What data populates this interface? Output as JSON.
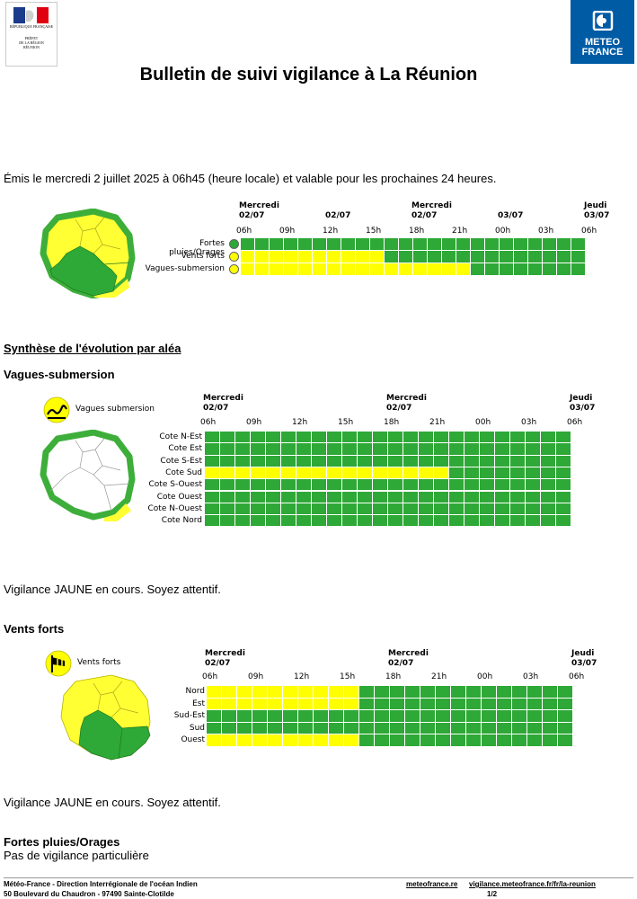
{
  "header": {
    "prefet_lines": [
      "RÉPUBLIQUE FRANÇAISE",
      "PRÉFET",
      "DE LA RÉGION",
      "RÉUNION"
    ],
    "mf_logo_lines": [
      "METEO",
      "FRANCE"
    ],
    "title": "Bulletin de suivi vigilance à La Réunion"
  },
  "emis": "Émis le mercredi 2 juillet 2025 à 06h45 (heure locale) et valable pour les prochaines 24 heures.",
  "colors": {
    "green": "#2ea836",
    "yellow": "#ffff00",
    "border_green": "#3dae3a"
  },
  "summary": {
    "date_headers": [
      {
        "day": "Mercredi",
        "date": "02/07",
        "col": 0
      },
      {
        "day": "",
        "date": "02/07",
        "col": 2
      },
      {
        "day": "Mercredi",
        "date": "02/07",
        "col": 4
      },
      {
        "day": "",
        "date": "03/07",
        "col": 6
      },
      {
        "day": "Jeudi",
        "date": "03/07",
        "col": 8
      }
    ],
    "ticks": [
      "06h",
      "09h",
      "12h",
      "15h",
      "18h",
      "21h",
      "00h",
      "03h",
      "06h"
    ],
    "rows": [
      {
        "label": "Fortes pluies/Orages",
        "icon": "rain-storm-icon",
        "yellow_hours": 0
      },
      {
        "label": "Vents forts",
        "icon": "wind-icon",
        "yellow_hours": 10
      },
      {
        "label": "Vagues-submersion",
        "icon": "wave-icon",
        "yellow_hours": 16
      }
    ]
  },
  "synthese_title": "Synthèse de l'évolution par aléa",
  "vagues": {
    "title": "Vagues-submersion",
    "icon_label": "Vagues submersion",
    "date_headers": [
      {
        "day": "Mercredi",
        "date": "02/07",
        "col": 0
      },
      {
        "day": "Mercredi",
        "date": "02/07",
        "col": 4
      },
      {
        "day": "Jeudi",
        "date": "03/07",
        "col": 8
      }
    ],
    "ticks": [
      "06h",
      "09h",
      "12h",
      "15h",
      "18h",
      "21h",
      "00h",
      "03h",
      "06h"
    ],
    "rows": [
      {
        "label": "Cote N-Est",
        "yellow_hours": 0
      },
      {
        "label": "Cote Est",
        "yellow_hours": 0
      },
      {
        "label": "Cote S-Est",
        "yellow_hours": 0
      },
      {
        "label": "Cote Sud",
        "yellow_hours": 16
      },
      {
        "label": "Cote S-Ouest",
        "yellow_hours": 0
      },
      {
        "label": "Cote Ouest",
        "yellow_hours": 0
      },
      {
        "label": "Cote N-Ouest",
        "yellow_hours": 0
      },
      {
        "label": "Cote Nord",
        "yellow_hours": 0
      }
    ],
    "status": "Vigilance JAUNE en cours. Soyez attentif."
  },
  "vents": {
    "title": "Vents forts",
    "icon_label": "Vents forts",
    "date_headers": [
      {
        "day": "Mercredi",
        "date": "02/07",
        "col": 0
      },
      {
        "day": "Mercredi",
        "date": "02/07",
        "col": 4
      },
      {
        "day": "Jeudi",
        "date": "03/07",
        "col": 8
      }
    ],
    "ticks": [
      "06h",
      "09h",
      "12h",
      "15h",
      "18h",
      "21h",
      "00h",
      "03h",
      "06h"
    ],
    "rows": [
      {
        "label": "Nord",
        "yellow_hours": 10
      },
      {
        "label": "Est",
        "yellow_hours": 10
      },
      {
        "label": "Sud-Est",
        "yellow_hours": 0
      },
      {
        "label": "Sud",
        "yellow_hours": 0
      },
      {
        "label": "Ouest",
        "yellow_hours": 10
      }
    ],
    "status": "Vigilance JAUNE en cours. Soyez attentif."
  },
  "pluies": {
    "title": "Fortes pluies/Orages",
    "status": "Pas de vigilance particulière"
  },
  "footer": {
    "line1": "Météo-France - Direction Interrégionale de l'océan Indien",
    "line2": "50 Boulevard du Chaudron - 97490 Sainte-Clotilde",
    "link1": "meteofrance.re",
    "link2": "vigilance.meteofrance.fr/fr/la-reunion",
    "page": "1/2"
  }
}
